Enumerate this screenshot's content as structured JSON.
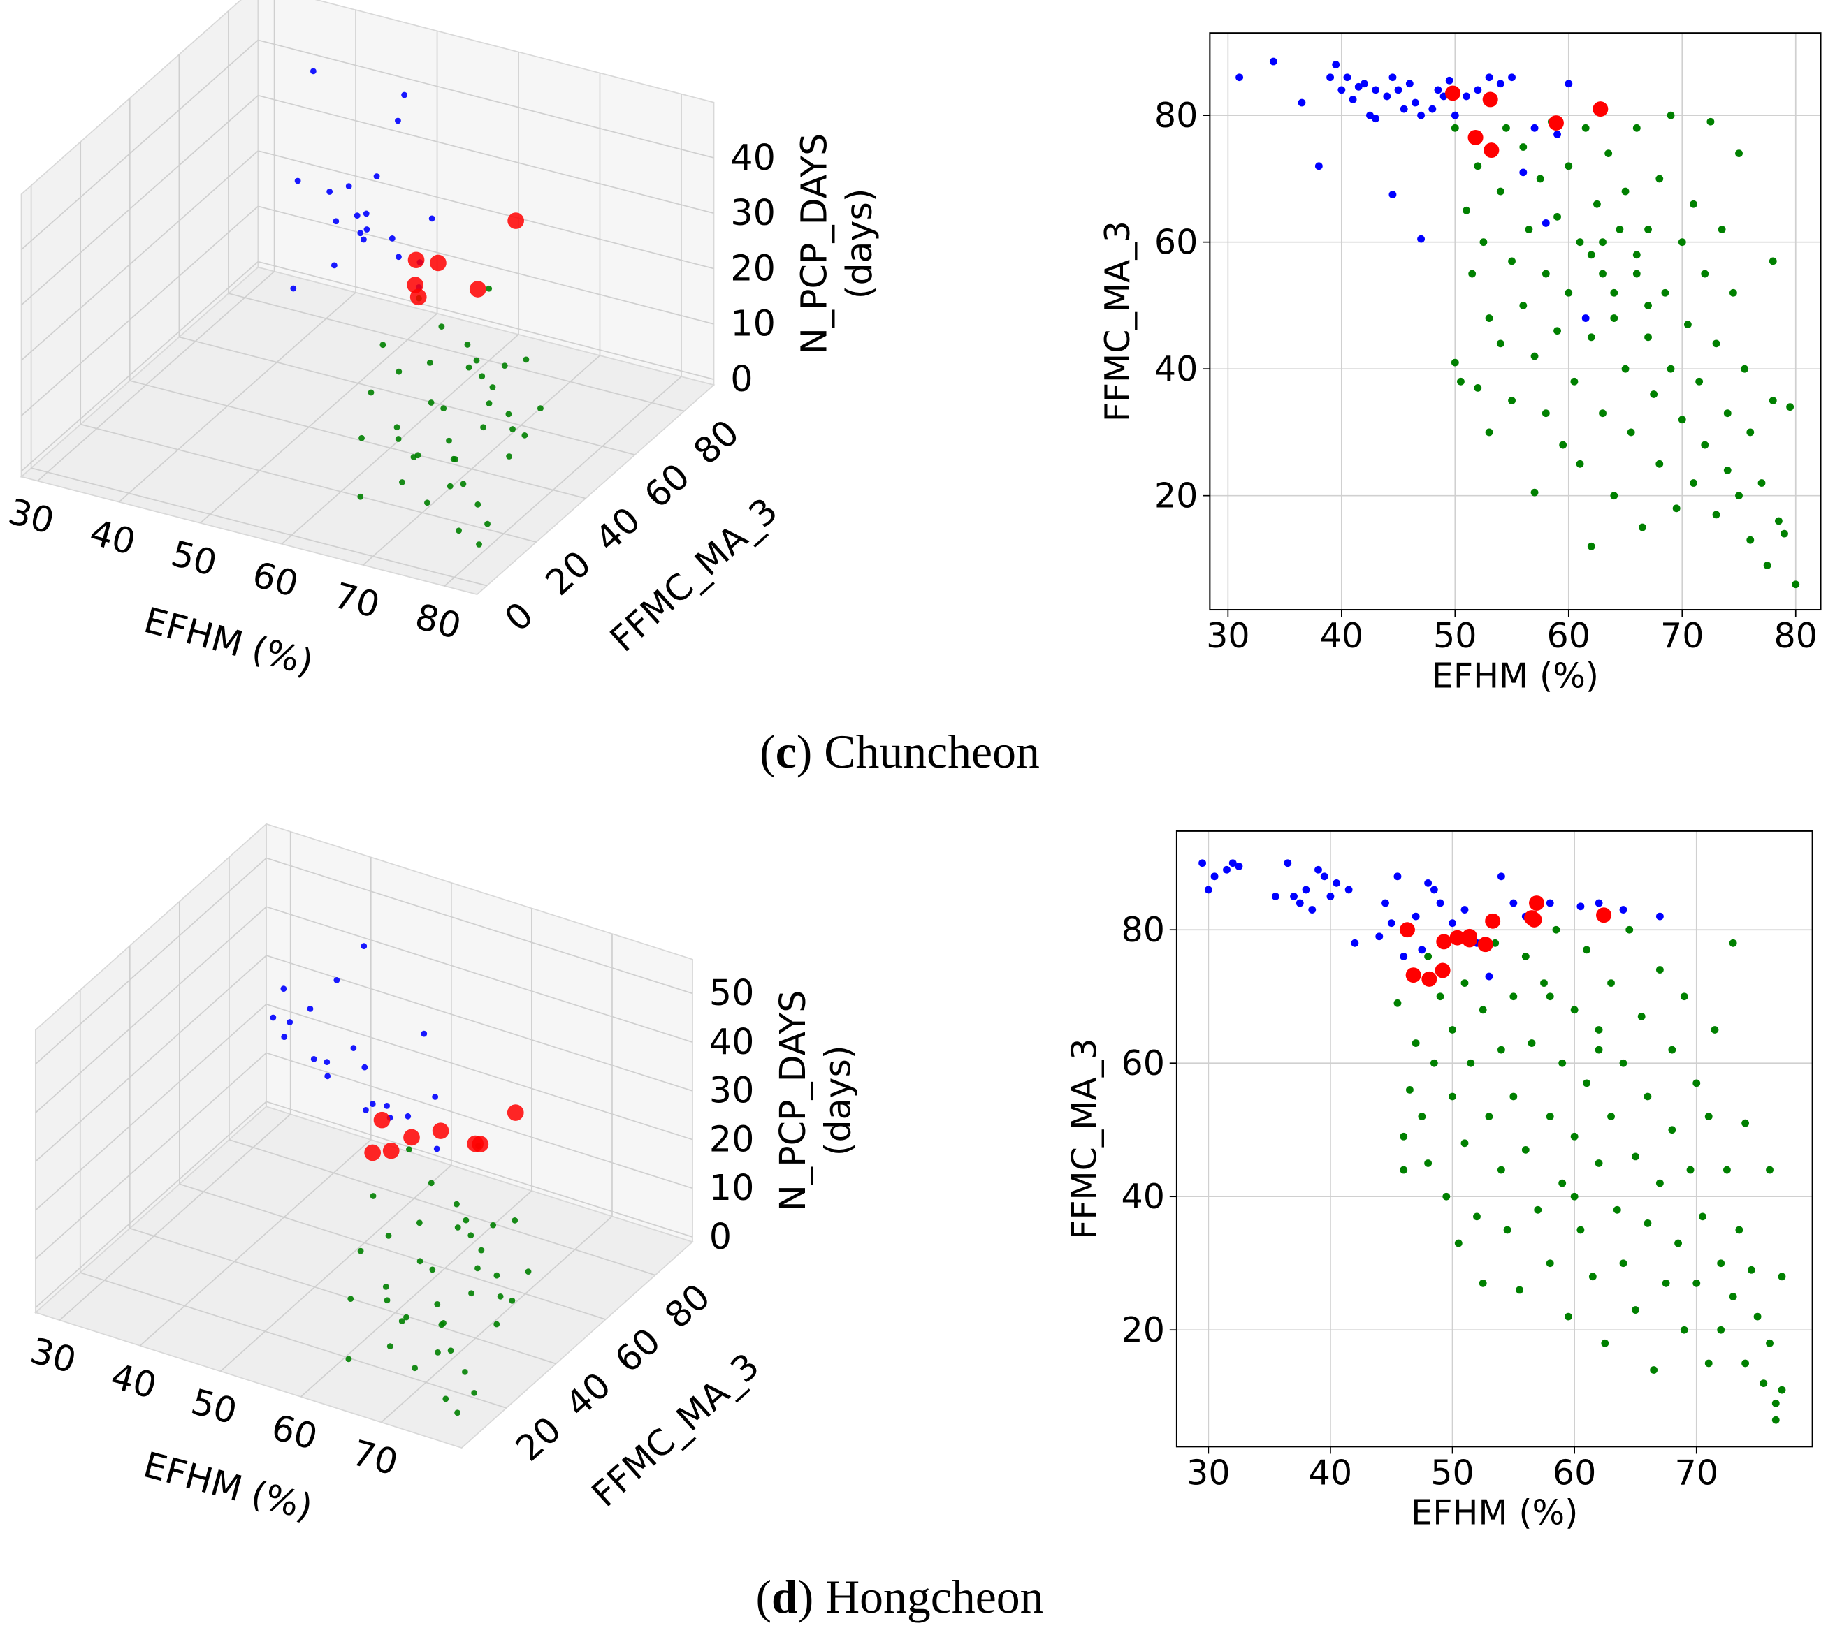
{
  "captions": [
    [
      "(",
      "c",
      ") Chuncheon"
    ],
    [
      "(",
      "d",
      ") Hongcheon"
    ]
  ],
  "chart_data": [
    {
      "type": "scatter3d",
      "xlabel": "EFHM (%)",
      "ylabel": "FFMC_MA_3",
      "zlabel": [
        "N_PCP_DAYS",
        "(days)"
      ],
      "xlim": [
        28,
        84
      ],
      "ylim": [
        -4,
        92
      ],
      "zlim": [
        -1,
        50
      ],
      "xticks": [
        30,
        40,
        50,
        60,
        70,
        80
      ],
      "yticks": [
        0,
        20,
        40,
        60,
        80
      ],
      "zticks": [
        0,
        10,
        20,
        30,
        40
      ],
      "grid": true,
      "series": [
        {
          "color": "#008000",
          "x": [
            50,
            55,
            60,
            62,
            65,
            68,
            70,
            72,
            75,
            78,
            52,
            58,
            63,
            66,
            69,
            73,
            76,
            80,
            54,
            61,
            64,
            67,
            71,
            74,
            57,
            59,
            62,
            65,
            68,
            70,
            72,
            60,
            66,
            63,
            56,
            69,
            75,
            64,
            61,
            67
          ],
          "values": [
            70,
            60,
            75,
            50,
            65,
            40,
            55,
            30,
            45,
            20,
            78,
            35,
            62,
            25,
            48,
            58,
            15,
            10,
            52,
            68,
            38,
            72,
            28,
            42,
            66,
            46,
            55,
            33,
            60,
            22,
            50,
            80,
            44,
            18,
            74,
            36,
            26,
            64,
            40,
            57
          ],
          "z": [
            2,
            3,
            1,
            4,
            2,
            0,
            3,
            1,
            5,
            0,
            8,
            2,
            6,
            1,
            3,
            4,
            0,
            1,
            2,
            7,
            0,
            5,
            1,
            2,
            3,
            0,
            1,
            2,
            9,
            0,
            3,
            12,
            1,
            0,
            6,
            2,
            0,
            4,
            1,
            3
          ]
        },
        {
          "color": "#0000ff",
          "x": [
            35,
            38,
            40,
            42,
            44,
            45,
            46,
            48,
            50,
            52,
            39,
            41,
            43,
            47,
            49,
            36,
            51,
            53,
            45,
            44
          ],
          "values": [
            85,
            88,
            84,
            86,
            82,
            80,
            87,
            83,
            85,
            78,
            70,
            80,
            84,
            86,
            82,
            88,
            60,
            80,
            84,
            76
          ],
          "z": [
            20,
            18,
            15,
            16,
            14,
            17,
            13,
            12,
            11,
            10,
            8,
            9,
            14,
            35,
            42,
            39,
            30,
            22,
            25,
            26
          ]
        },
        {
          "color": "#ff0000",
          "x": [
            50,
            53,
            52,
            53,
            59,
            63
          ],
          "values": [
            83.5,
            82.5,
            76.5,
            74.5,
            78.8,
            81
          ],
          "z": [
            12,
            13,
            11,
            10,
            12,
            25
          ]
        }
      ]
    },
    {
      "type": "scatter",
      "xlabel": "EFHM (%)",
      "ylabel": "FFMC_MA_3",
      "xlim": [
        28.4,
        82.2
      ],
      "ylim": [
        2,
        93
      ],
      "xticks": [
        30,
        40,
        50,
        60,
        70,
        80
      ],
      "yticks": [
        20,
        40,
        60,
        80
      ],
      "grid": true,
      "series": [
        {
          "color": "#008000",
          "x": [
            50,
            50.5,
            50,
            51,
            51.5,
            52,
            52,
            52.5,
            53,
            53,
            54,
            54,
            54.5,
            55,
            55,
            56,
            56,
            56.5,
            57,
            57,
            57.5,
            58,
            58,
            58.5,
            59,
            59,
            59.5,
            60,
            60,
            60.5,
            61,
            61,
            61.5,
            62,
            62,
            62.5,
            63,
            63,
            63.5,
            64,
            64,
            64.5,
            65,
            65,
            65.5,
            66,
            66,
            66.5,
            67,
            67,
            67.5,
            68,
            68,
            68.5,
            69,
            69,
            69.5,
            70,
            70,
            70.5,
            71,
            71,
            71.5,
            72,
            72,
            72.5,
            73,
            73,
            73.5,
            74,
            74,
            74.5,
            75,
            75,
            75.5,
            76,
            76,
            77,
            77.5,
            78,
            78,
            78.5,
            79,
            79.5,
            80,
            66,
            64,
            67,
            63,
            62
          ],
          "values": [
            78,
            38,
            41,
            65,
            55,
            72,
            37,
            60,
            48,
            30,
            68,
            44,
            78,
            57,
            35,
            75,
            50,
            62,
            20.5,
            42,
            70,
            55,
            33,
            79,
            64,
            46,
            28,
            72,
            52,
            38,
            60,
            25,
            78,
            45,
            12,
            66,
            55,
            33,
            74,
            48,
            20,
            62,
            40,
            68,
            30,
            55,
            78,
            15,
            45,
            62,
            36,
            70,
            25,
            52,
            80,
            40,
            18,
            60,
            32,
            47,
            22,
            66,
            38,
            55,
            28,
            79,
            44,
            17,
            62,
            33,
            24,
            52,
            74,
            20,
            40,
            13,
            30,
            22,
            9,
            57,
            35,
            16,
            14,
            34,
            6,
            58,
            52,
            50,
            60,
            58
          ]
        },
        {
          "color": "#0000ff",
          "x": [
            31,
            34,
            36.5,
            38,
            39,
            39.5,
            40,
            40.5,
            41,
            42,
            42.5,
            43,
            44,
            44.5,
            45,
            45.5,
            46,
            46.5,
            47,
            47,
            44.5,
            48,
            48.5,
            49,
            50,
            51,
            52,
            53,
            54,
            55,
            56,
            57,
            58,
            59,
            60,
            61.5,
            52,
            43,
            41.5,
            49.5
          ],
          "values": [
            86,
            88.5,
            82,
            72,
            86,
            88,
            84,
            86,
            82.5,
            85,
            80,
            84,
            83,
            86,
            84,
            81,
            85,
            82,
            80,
            60.5,
            67.5,
            81,
            84,
            83,
            80,
            83,
            84,
            86,
            85,
            86,
            71,
            78,
            63,
            77,
            85,
            48,
            77,
            79.5,
            84.5,
            85.5
          ]
        },
        {
          "color": "#ff0000",
          "x": [
            49.8,
            53.1,
            51.8,
            53.2,
            58.9,
            62.8
          ],
          "values": [
            83.5,
            82.5,
            76.5,
            74.5,
            78.8,
            81
          ]
        }
      ]
    },
    {
      "type": "scatter3d",
      "xlabel": "EFHM (%)",
      "ylabel": "FFMC_MA_3",
      "zlabel": [
        "N_PCP_DAYS",
        "(days)"
      ],
      "xlim": [
        27,
        80
      ],
      "ylim": [
        2,
        95
      ],
      "zlim": [
        -1,
        57
      ],
      "xticks": [
        30,
        40,
        50,
        60,
        70
      ],
      "yticks": [
        20,
        40,
        60,
        80
      ],
      "zticks": [
        0,
        10,
        20,
        30,
        40,
        50
      ],
      "grid": true,
      "series": [
        {
          "color": "#008000",
          "x": [
            48,
            53,
            58,
            60,
            63,
            66,
            68,
            70,
            73,
            76,
            50,
            56,
            61,
            64,
            67,
            71,
            74,
            77,
            52,
            59,
            62,
            65,
            69,
            72,
            55,
            57,
            60,
            63,
            66,
            68,
            70,
            58,
            64,
            61,
            54,
            67,
            73,
            62,
            59,
            65
          ],
          "values": [
            70,
            60,
            75,
            50,
            65,
            40,
            55,
            30,
            45,
            20,
            78,
            35,
            62,
            25,
            48,
            58,
            15,
            10,
            52,
            68,
            38,
            72,
            28,
            42,
            66,
            46,
            55,
            33,
            60,
            22,
            50,
            80,
            44,
            18,
            74,
            36,
            26,
            64,
            40,
            57
          ],
          "z": [
            3,
            2,
            1,
            5,
            2,
            0,
            4,
            1,
            6,
            0,
            10,
            2,
            7,
            1,
            3,
            5,
            0,
            1,
            2,
            8,
            0,
            6,
            1,
            2,
            3,
            0,
            1,
            2,
            11,
            0,
            3,
            14,
            1,
            0,
            7,
            2,
            0,
            5,
            1,
            3
          ]
        },
        {
          "color": "#0000ff",
          "x": [
            30,
            32,
            34,
            36,
            38,
            40,
            42,
            44,
            46,
            48,
            31,
            33,
            37,
            41,
            45,
            50,
            52,
            55,
            43,
            47
          ],
          "values": [
            88,
            86,
            90,
            85,
            84,
            88,
            86,
            80,
            82,
            84,
            89,
            85,
            87,
            78,
            76,
            84,
            82,
            73,
            86,
            80
          ],
          "z": [
            22,
            20,
            25,
            18,
            16,
            21,
            19,
            14,
            15,
            13,
            28,
            24,
            17,
            40,
            50,
            31,
            20,
            15,
            12,
            14
          ]
        },
        {
          "color": "#ff0000",
          "x": [
            46,
            47,
            49,
            50,
            53,
            57,
            57,
            62
          ],
          "values": [
            80,
            73,
            74,
            79,
            81,
            84,
            82,
            82
          ],
          "z": [
            13,
            10,
            11,
            12,
            14,
            12,
            13,
            22
          ]
        }
      ]
    },
    {
      "type": "scatter",
      "xlabel": "EFHM (%)",
      "ylabel": "FFMC_MA_3",
      "xlim": [
        27.4,
        79.5
      ],
      "ylim": [
        2.5,
        94.8
      ],
      "xticks": [
        30,
        40,
        50,
        60,
        70
      ],
      "yticks": [
        20,
        40,
        60,
        80
      ],
      "grid": true,
      "series": [
        {
          "color": "#008000",
          "x": [
            45.5,
            46,
            46,
            46.5,
            47,
            47.5,
            48,
            48,
            48.5,
            49,
            49.5,
            50,
            50,
            50.5,
            51,
            51,
            51.5,
            52,
            52.5,
            52.5,
            53,
            53.5,
            54,
            54,
            54.5,
            55,
            55,
            55.5,
            56,
            56,
            56.5,
            57,
            57.5,
            58,
            58,
            58.5,
            59,
            59,
            59.5,
            60,
            60,
            60.5,
            61,
            61,
            61.5,
            62,
            62,
            62.5,
            63,
            63,
            63.5,
            64,
            64,
            64.5,
            65,
            65,
            65.5,
            66,
            66,
            66.5,
            67,
            67,
            67.5,
            68,
            68,
            68.5,
            69,
            69,
            69.5,
            70,
            70,
            70.5,
            71,
            71,
            71.5,
            72,
            72,
            72.5,
            73,
            73,
            73.5,
            74,
            74,
            74.5,
            75,
            75.5,
            76,
            76,
            76.5,
            77,
            77,
            76.5,
            58,
            62,
            60
          ],
          "values": [
            69,
            49,
            44,
            56,
            63,
            52,
            76,
            45,
            60,
            70,
            40,
            55,
            65,
            33,
            72,
            48,
            60,
            37,
            68,
            27,
            52,
            78,
            44,
            62,
            35,
            70,
            55,
            26,
            47,
            76,
            63,
            38,
            72,
            52,
            30,
            80,
            60,
            42,
            22,
            68,
            49,
            35,
            77,
            57,
            28,
            45,
            65,
            18,
            72,
            52,
            38,
            60,
            30,
            80,
            46,
            23,
            67,
            55,
            36,
            14,
            74,
            42,
            27,
            62,
            50,
            33,
            20,
            70,
            44,
            57,
            27,
            37,
            15,
            52,
            65,
            30,
            20,
            44,
            78,
            25,
            35,
            51,
            15,
            29,
            22,
            12,
            44,
            18,
            9,
            28,
            11,
            6.5,
            70,
            62,
            40
          ]
        },
        {
          "color": "#0000ff",
          "x": [
            29.5,
            30,
            30.5,
            31.5,
            32,
            32.5,
            35.5,
            36.5,
            37,
            37.5,
            38,
            38.5,
            39,
            39.5,
            40,
            40.5,
            41.5,
            42,
            44,
            45,
            45.5,
            46,
            47,
            48,
            48.5,
            49,
            50,
            51,
            52,
            53,
            54,
            55,
            56,
            58,
            62,
            64,
            67,
            44.5,
            47.5,
            60.5
          ],
          "values": [
            90,
            86,
            88,
            89,
            90,
            89.5,
            85,
            90,
            85,
            84,
            86,
            83,
            89,
            88,
            85,
            87,
            86,
            78,
            79,
            81,
            88,
            76,
            82,
            87,
            86,
            84,
            81,
            83,
            78,
            73,
            88,
            84,
            82,
            84,
            84,
            83,
            82,
            84,
            77,
            83.5
          ]
        },
        {
          "color": "#ff0000",
          "x": [
            46.3,
            46.8,
            48.1,
            49.2,
            49.3,
            50.4,
            51.4,
            51.4,
            52.7,
            53.3,
            56.5,
            56.9,
            56.7,
            62.4
          ],
          "values": [
            80,
            73.2,
            72.6,
            73.9,
            78.2,
            78.8,
            79,
            78.5,
            77.8,
            81.3,
            81.8,
            84,
            81.5,
            82.2
          ]
        }
      ]
    }
  ]
}
